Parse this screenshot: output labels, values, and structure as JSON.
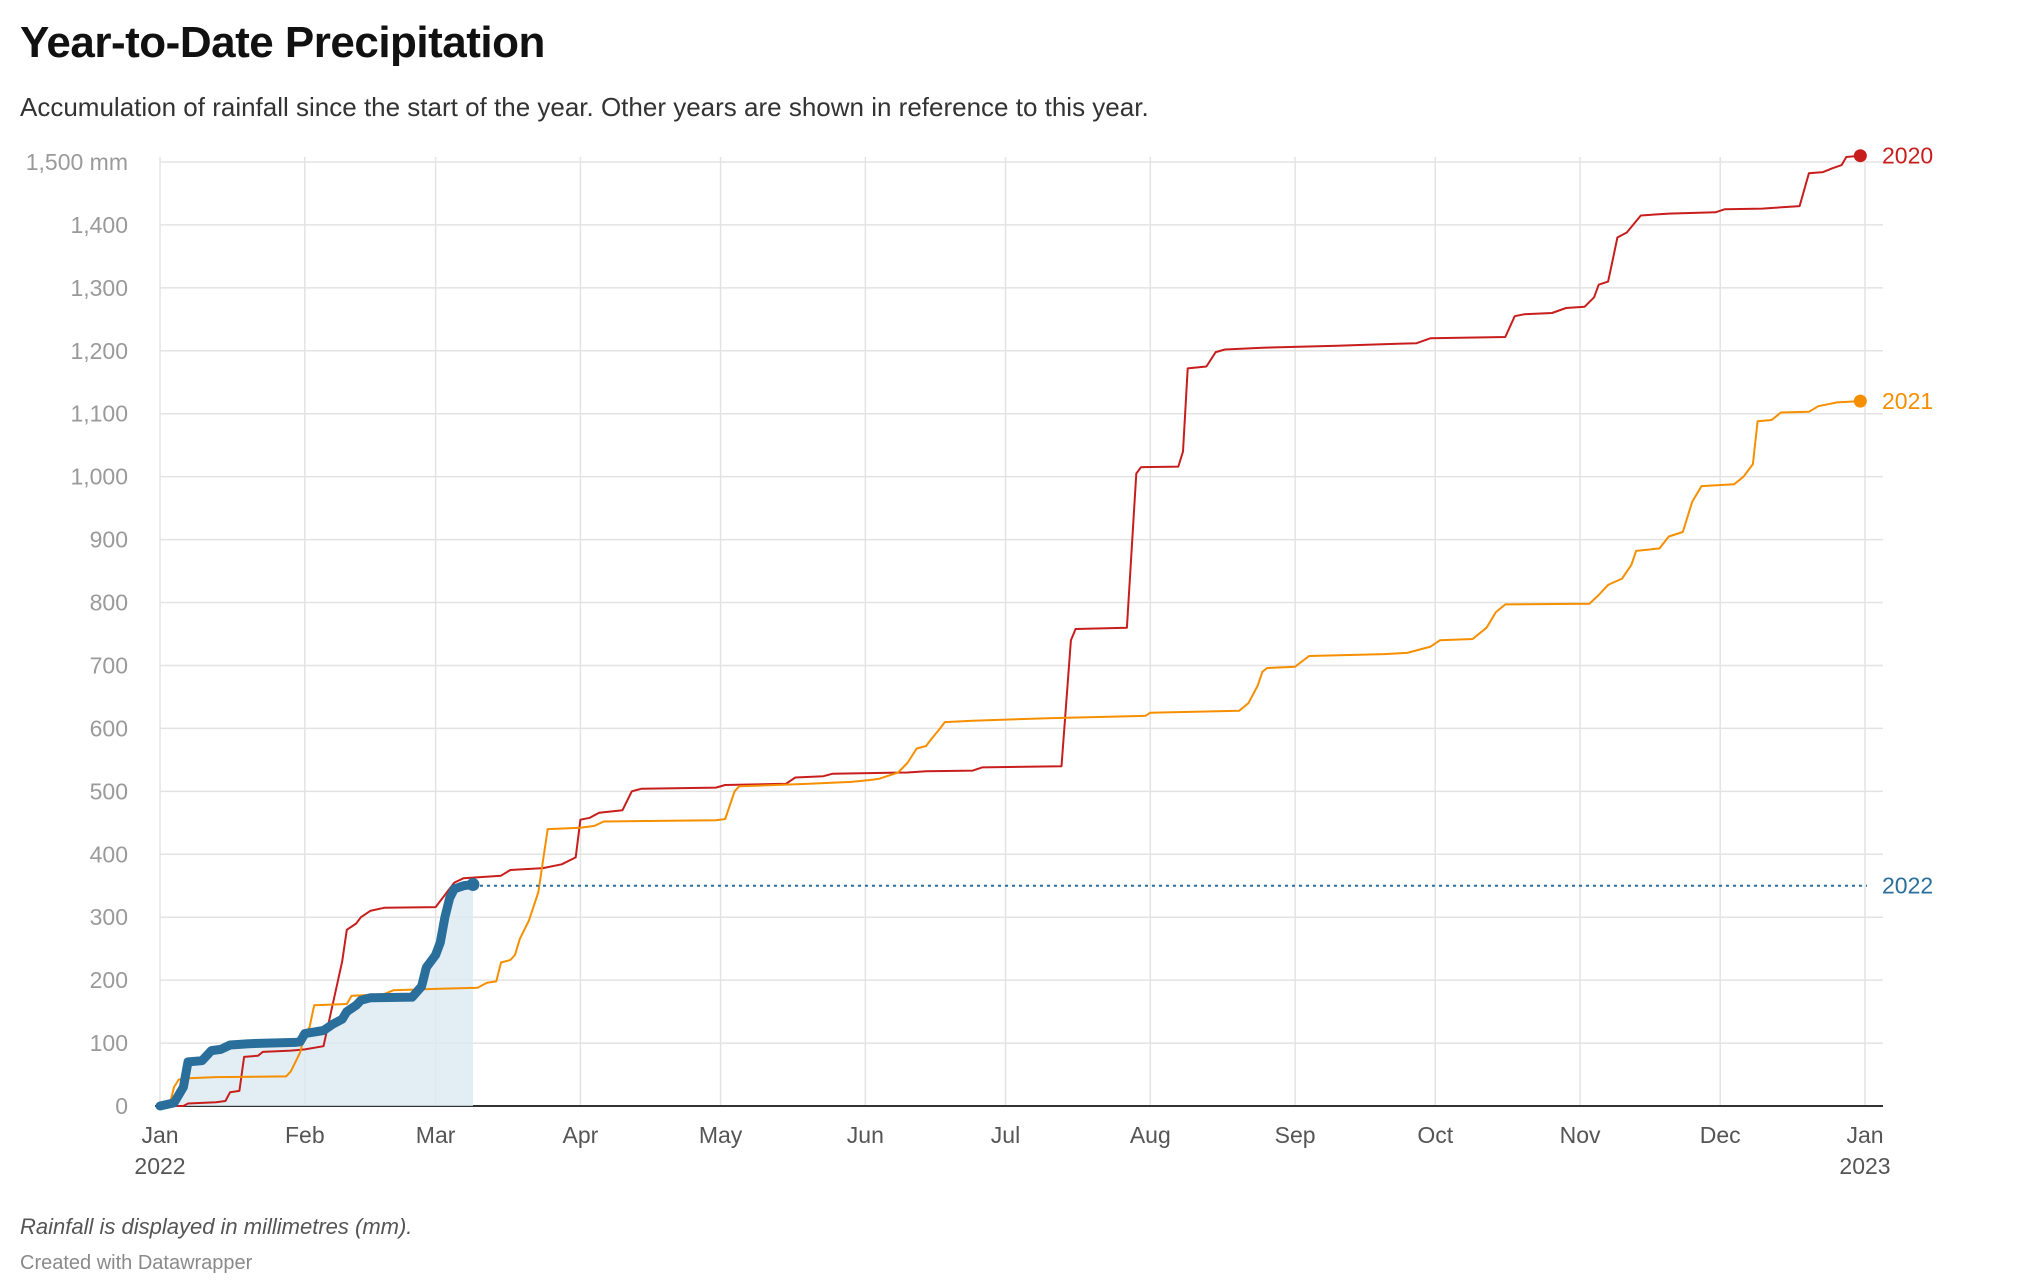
{
  "title": "Year-to-Date Precipitation",
  "subtitle": "Accumulation of rainfall since the start of the year. Other years are shown in reference to this year.",
  "footnote": "Rainfall is displayed in millimetres (mm).",
  "credit": "Created with Datawrapper",
  "chart_data": {
    "type": "line",
    "title": "Year-to-Date Precipitation",
    "xlabel": "",
    "ylabel": "",
    "ylim": [
      0,
      1500
    ],
    "xlim": [
      "2022-01-01",
      "2023-01-01"
    ],
    "grid": true,
    "legend": "direct labels at line ends (right)",
    "y_ticks": [
      {
        "value": 0,
        "label": "0"
      },
      {
        "value": 100,
        "label": "100"
      },
      {
        "value": 200,
        "label": "200"
      },
      {
        "value": 300,
        "label": "300"
      },
      {
        "value": 400,
        "label": "400"
      },
      {
        "value": 500,
        "label": "500"
      },
      {
        "value": 600,
        "label": "600"
      },
      {
        "value": 700,
        "label": "700"
      },
      {
        "value": 800,
        "label": "800"
      },
      {
        "value": 900,
        "label": "900"
      },
      {
        "value": 1000,
        "label": "1,000"
      },
      {
        "value": 1100,
        "label": "1,100"
      },
      {
        "value": 1200,
        "label": "1,200"
      },
      {
        "value": 1300,
        "label": "1,300"
      },
      {
        "value": 1400,
        "label": "1,400"
      },
      {
        "value": 1500,
        "label": "1,500 mm"
      }
    ],
    "x_ticks": [
      {
        "date": "2022-01-01",
        "label": "Jan",
        "sublabel": "2022"
      },
      {
        "date": "2022-02-01",
        "label": "Feb"
      },
      {
        "date": "2022-03-01",
        "label": "Mar"
      },
      {
        "date": "2022-04-01",
        "label": "Apr"
      },
      {
        "date": "2022-05-01",
        "label": "May"
      },
      {
        "date": "2022-06-01",
        "label": "Jun"
      },
      {
        "date": "2022-07-01",
        "label": "Jul"
      },
      {
        "date": "2022-08-01",
        "label": "Aug"
      },
      {
        "date": "2022-09-01",
        "label": "Sep"
      },
      {
        "date": "2022-10-01",
        "label": "Oct"
      },
      {
        "date": "2022-11-01",
        "label": "Nov"
      },
      {
        "date": "2022-12-01",
        "label": "Dec"
      },
      {
        "date": "2023-01-01",
        "label": "Jan",
        "sublabel": "2023"
      }
    ],
    "series": [
      {
        "name": "2020",
        "color": "#c71e1d",
        "style": "thin",
        "end_label": "2020",
        "points": [
          [
            "2022-01-01",
            0
          ],
          [
            "2022-01-06",
            0
          ],
          [
            "2022-01-07",
            4
          ],
          [
            "2022-01-13",
            6
          ],
          [
            "2022-01-15",
            8
          ],
          [
            "2022-01-16",
            22
          ],
          [
            "2022-01-18",
            24
          ],
          [
            "2022-01-19",
            78
          ],
          [
            "2022-01-22",
            80
          ],
          [
            "2022-01-23",
            86
          ],
          [
            "2022-01-29",
            88
          ],
          [
            "2022-02-01",
            90
          ],
          [
            "2022-02-05",
            95
          ],
          [
            "2022-02-09",
            230
          ],
          [
            "2022-02-10",
            280
          ],
          [
            "2022-02-12",
            290
          ],
          [
            "2022-02-13",
            300
          ],
          [
            "2022-02-15",
            310
          ],
          [
            "2022-02-18",
            315
          ],
          [
            "2022-03-01",
            316
          ],
          [
            "2022-03-05",
            355
          ],
          [
            "2022-03-07",
            362
          ],
          [
            "2022-03-15",
            366
          ],
          [
            "2022-03-17",
            375
          ],
          [
            "2022-03-24",
            378
          ],
          [
            "2022-03-28",
            384
          ],
          [
            "2022-03-31",
            395
          ],
          [
            "2022-04-01",
            455
          ],
          [
            "2022-04-03",
            458
          ],
          [
            "2022-04-05",
            466
          ],
          [
            "2022-04-10",
            470
          ],
          [
            "2022-04-12",
            500
          ],
          [
            "2022-04-14",
            504
          ],
          [
            "2022-04-30",
            506
          ],
          [
            "2022-05-02",
            510
          ],
          [
            "2022-05-15",
            512
          ],
          [
            "2022-05-17",
            522
          ],
          [
            "2022-05-23",
            524
          ],
          [
            "2022-05-25",
            528
          ],
          [
            "2022-06-10",
            530
          ],
          [
            "2022-06-14",
            532
          ],
          [
            "2022-06-24",
            533
          ],
          [
            "2022-06-26",
            538
          ],
          [
            "2022-07-13",
            540
          ],
          [
            "2022-07-15",
            740
          ],
          [
            "2022-07-16",
            758
          ],
          [
            "2022-07-27",
            760
          ],
          [
            "2022-07-29",
            1005
          ],
          [
            "2022-07-30",
            1015
          ],
          [
            "2022-08-07",
            1016
          ],
          [
            "2022-08-08",
            1040
          ],
          [
            "2022-08-09",
            1172
          ],
          [
            "2022-08-13",
            1175
          ],
          [
            "2022-08-15",
            1198
          ],
          [
            "2022-08-17",
            1202
          ],
          [
            "2022-08-25",
            1205
          ],
          [
            "2022-09-10",
            1208
          ],
          [
            "2022-09-18",
            1210
          ],
          [
            "2022-09-27",
            1212
          ],
          [
            "2022-09-30",
            1220
          ],
          [
            "2022-10-16",
            1222
          ],
          [
            "2022-10-18",
            1255
          ],
          [
            "2022-10-20",
            1258
          ],
          [
            "2022-10-26",
            1260
          ],
          [
            "2022-10-29",
            1268
          ],
          [
            "2022-11-02",
            1270
          ],
          [
            "2022-11-04",
            1285
          ],
          [
            "2022-11-05",
            1305
          ],
          [
            "2022-11-07",
            1310
          ],
          [
            "2022-11-08",
            1345
          ],
          [
            "2022-11-09",
            1380
          ],
          [
            "2022-11-11",
            1388
          ],
          [
            "2022-11-14",
            1415
          ],
          [
            "2022-11-20",
            1418
          ],
          [
            "2022-11-30",
            1420
          ],
          [
            "2022-12-02",
            1425
          ],
          [
            "2022-12-10",
            1426
          ],
          [
            "2022-12-18",
            1430
          ],
          [
            "2022-12-20",
            1482
          ],
          [
            "2022-12-23",
            1484
          ],
          [
            "2022-12-25",
            1490
          ],
          [
            "2022-12-27",
            1495
          ],
          [
            "2022-12-28",
            1508
          ],
          [
            "2022-12-31",
            1510
          ]
        ]
      },
      {
        "name": "2021",
        "color": "#f68f00",
        "style": "thin",
        "end_label": "2021",
        "points": [
          [
            "2022-01-01",
            0
          ],
          [
            "2022-01-03",
            0
          ],
          [
            "2022-01-04",
            30
          ],
          [
            "2022-01-05",
            42
          ],
          [
            "2022-01-07",
            44
          ],
          [
            "2022-01-13",
            46
          ],
          [
            "2022-01-28",
            47
          ],
          [
            "2022-01-29",
            55
          ],
          [
            "2022-01-31",
            85
          ],
          [
            "2022-02-01",
            115
          ],
          [
            "2022-02-02",
            125
          ],
          [
            "2022-02-03",
            160
          ],
          [
            "2022-02-10",
            162
          ],
          [
            "2022-02-11",
            175
          ],
          [
            "2022-02-18",
            178
          ],
          [
            "2022-02-20",
            184
          ],
          [
            "2022-03-01",
            186
          ],
          [
            "2022-03-10",
            188
          ],
          [
            "2022-03-12",
            196
          ],
          [
            "2022-03-14",
            198
          ],
          [
            "2022-03-15",
            228
          ],
          [
            "2022-03-17",
            232
          ],
          [
            "2022-03-18",
            240
          ],
          [
            "2022-03-19",
            265
          ],
          [
            "2022-03-21",
            295
          ],
          [
            "2022-03-23",
            340
          ],
          [
            "2022-03-24",
            390
          ],
          [
            "2022-03-25",
            440
          ],
          [
            "2022-04-01",
            442
          ],
          [
            "2022-04-04",
            445
          ],
          [
            "2022-04-06",
            452
          ],
          [
            "2022-04-30",
            454
          ],
          [
            "2022-05-02",
            456
          ],
          [
            "2022-05-04",
            500
          ],
          [
            "2022-05-05",
            508
          ],
          [
            "2022-05-20",
            512
          ],
          [
            "2022-05-29",
            515
          ],
          [
            "2022-06-02",
            518
          ],
          [
            "2022-06-04",
            520
          ],
          [
            "2022-06-08",
            530
          ],
          [
            "2022-06-10",
            545
          ],
          [
            "2022-06-12",
            568
          ],
          [
            "2022-06-14",
            572
          ],
          [
            "2022-06-15",
            582
          ],
          [
            "2022-06-17",
            600
          ],
          [
            "2022-06-18",
            610
          ],
          [
            "2022-06-24",
            612
          ],
          [
            "2022-07-01",
            614
          ],
          [
            "2022-07-10",
            616
          ],
          [
            "2022-07-31",
            620
          ],
          [
            "2022-08-01",
            625
          ],
          [
            "2022-08-20",
            628
          ],
          [
            "2022-08-22",
            640
          ],
          [
            "2022-08-24",
            668
          ],
          [
            "2022-08-25",
            690
          ],
          [
            "2022-08-26",
            696
          ],
          [
            "2022-09-01",
            698
          ],
          [
            "2022-09-04",
            715
          ],
          [
            "2022-09-20",
            718
          ],
          [
            "2022-09-25",
            720
          ],
          [
            "2022-09-30",
            730
          ],
          [
            "2022-10-02",
            740
          ],
          [
            "2022-10-09",
            742
          ],
          [
            "2022-10-12",
            760
          ],
          [
            "2022-10-14",
            785
          ],
          [
            "2022-10-16",
            797
          ],
          [
            "2022-11-03",
            798
          ],
          [
            "2022-11-05",
            812
          ],
          [
            "2022-11-07",
            828
          ],
          [
            "2022-11-10",
            838
          ],
          [
            "2022-11-12",
            860
          ],
          [
            "2022-11-13",
            882
          ],
          [
            "2022-11-18",
            886
          ],
          [
            "2022-11-20",
            905
          ],
          [
            "2022-11-23",
            912
          ],
          [
            "2022-11-25",
            960
          ],
          [
            "2022-11-27",
            985
          ],
          [
            "2022-12-04",
            988
          ],
          [
            "2022-12-06",
            1000
          ],
          [
            "2022-12-08",
            1020
          ],
          [
            "2022-12-09",
            1088
          ],
          [
            "2022-12-12",
            1090
          ],
          [
            "2022-12-14",
            1102
          ],
          [
            "2022-12-20",
            1103
          ],
          [
            "2022-12-22",
            1112
          ],
          [
            "2022-12-24",
            1115
          ],
          [
            "2022-12-26",
            1118
          ],
          [
            "2022-12-31",
            1120
          ]
        ]
      },
      {
        "name": "2022",
        "color": "#2a6f9c",
        "style": "thick",
        "end_label": "2022",
        "points": [
          [
            "2022-01-01",
            0
          ],
          [
            "2022-01-04",
            5
          ],
          [
            "2022-01-06",
            30
          ],
          [
            "2022-01-07",
            70
          ],
          [
            "2022-01-10",
            72
          ],
          [
            "2022-01-12",
            88
          ],
          [
            "2022-01-14",
            90
          ],
          [
            "2022-01-16",
            97
          ],
          [
            "2022-01-20",
            99
          ],
          [
            "2022-01-24",
            100
          ],
          [
            "2022-01-30",
            101
          ],
          [
            "2022-01-31",
            102
          ],
          [
            "2022-02-01",
            115
          ],
          [
            "2022-02-05",
            120
          ],
          [
            "2022-02-07",
            130
          ],
          [
            "2022-02-09",
            138
          ],
          [
            "2022-02-10",
            150
          ],
          [
            "2022-02-12",
            160
          ],
          [
            "2022-02-13",
            168
          ],
          [
            "2022-02-15",
            172
          ],
          [
            "2022-02-24",
            173
          ],
          [
            "2022-02-26",
            190
          ],
          [
            "2022-02-27",
            220
          ],
          [
            "2022-03-01",
            240
          ],
          [
            "2022-03-02",
            260
          ],
          [
            "2022-03-03",
            300
          ],
          [
            "2022-03-04",
            330
          ],
          [
            "2022-03-05",
            345
          ],
          [
            "2022-03-07",
            350
          ],
          [
            "2022-03-09",
            352
          ]
        ],
        "projection_value": 350
      }
    ]
  }
}
